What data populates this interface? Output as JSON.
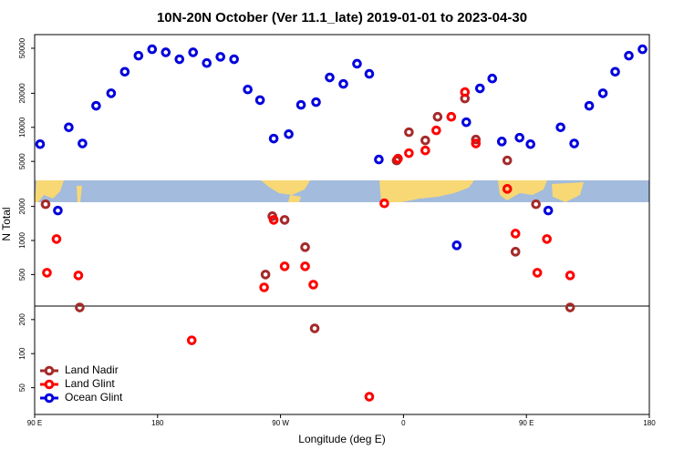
{
  "chart_data": {
    "type": "scatter",
    "title": "10N-20N October (Ver 11.1_late)   2019-01-01 to 2023-04-30",
    "xlabel": "Longitude (deg E)",
    "ylabel": "N Total",
    "xlim": [
      90,
      540
    ],
    "xticks": [
      {
        "value": 90,
        "label": "90 E"
      },
      180,
      {
        "value": 270,
        "label": "90 W"
      },
      {
        "value": 360,
        "label": "0"
      },
      {
        "value": 450,
        "label": "90 E"
      },
      {
        "value": 540,
        "label": "180"
      }
    ],
    "ylim": [
      29,
      66000
    ],
    "log_y": true,
    "yticks": [
      50,
      100,
      200,
      500,
      1000,
      2000,
      5000,
      10000,
      20000,
      50000
    ],
    "legend": "lower left",
    "series": [
      {
        "name": "Land Nadir",
        "color": "#a52a2a",
        "x": [
          98,
          123,
          264,
          273,
          259,
          288,
          295,
          355,
          364,
          376,
          385,
          405,
          413,
          436,
          442,
          457,
          482
        ],
        "values": [
          2090,
          256,
          1640,
          1520,
          500,
          873,
          167,
          5090,
          9060,
          7660,
          12400,
          18000,
          7800,
          5100,
          796,
          2090,
          256
        ]
      },
      {
        "name": "Land Glint",
        "color": "#ff0000",
        "x": [
          99,
          106,
          122,
          205,
          258,
          265,
          273,
          288,
          294,
          335,
          346,
          356,
          364,
          376,
          384,
          395,
          405,
          413,
          436,
          442,
          458,
          465,
          482
        ],
        "values": [
          519,
          1030,
          491,
          131,
          385,
          1520,
          591,
          591,
          407,
          41.6,
          2130,
          5290,
          5910,
          6250,
          9400,
          12400,
          20500,
          7200,
          2860,
          1150,
          519,
          1030,
          491
        ]
      },
      {
        "name": "Ocean Glint",
        "color": "#0000dd",
        "x": [
          94,
          107,
          115,
          125,
          135,
          146,
          156,
          166,
          176,
          186,
          196,
          206,
          216,
          226,
          236,
          246,
          255,
          265,
          276,
          285,
          296,
          306,
          316,
          326,
          335,
          342,
          399,
          406,
          416,
          425,
          432,
          445,
          453,
          466,
          475,
          485,
          496,
          506,
          515,
          525,
          535
        ],
        "values": [
          7100,
          1840,
          10000,
          7200,
          15500,
          20000,
          31000,
          43000,
          49000,
          46000,
          40000,
          46000,
          37000,
          42000,
          40000,
          21600,
          17400,
          7950,
          8700,
          15800,
          16700,
          27600,
          24200,
          36500,
          29700,
          5200,
          906,
          11100,
          22100,
          27000,
          7500,
          8100,
          7100,
          1840,
          10000,
          7200,
          15500,
          20000,
          31000,
          43000,
          49000
        ]
      }
    ]
  }
}
